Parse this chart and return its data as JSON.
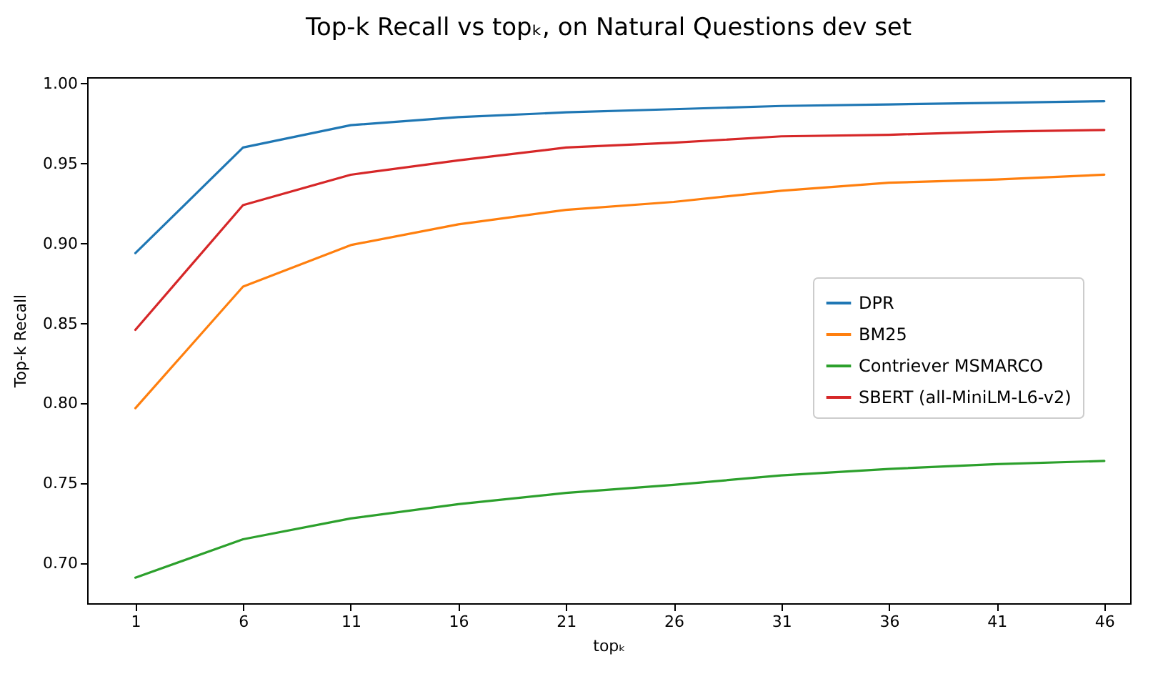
{
  "chart_data": {
    "type": "line",
    "title": "Top-k Recall vs topₖ, on Natural Questions dev set",
    "xlabel": "topₖ",
    "ylabel": "Top-k Recall",
    "x": [
      1,
      6,
      11,
      16,
      21,
      26,
      31,
      36,
      41,
      46
    ],
    "series": [
      {
        "name": "DPR",
        "color": "#1f77b4",
        "values": [
          0.894,
          0.96,
          0.974,
          0.979,
          0.982,
          0.984,
          0.986,
          0.987,
          0.988,
          0.989
        ]
      },
      {
        "name": "BM25",
        "color": "#ff7f0e",
        "values": [
          0.797,
          0.873,
          0.899,
          0.912,
          0.921,
          0.926,
          0.933,
          0.938,
          0.94,
          0.943
        ]
      },
      {
        "name": "Contriever MSMARCO",
        "color": "#2ca02c",
        "values": [
          0.691,
          0.715,
          0.728,
          0.737,
          0.744,
          0.749,
          0.755,
          0.759,
          0.762,
          0.764
        ]
      },
      {
        "name": "SBERT (all-MiniLM-L6-v2)",
        "color": "#d62728",
        "values": [
          0.846,
          0.924,
          0.943,
          0.952,
          0.96,
          0.963,
          0.967,
          0.968,
          0.97,
          0.971
        ]
      }
    ],
    "xlim": [
      -1.24,
      47.2
    ],
    "ylim": [
      0.675,
      1.004
    ],
    "xticks": [
      1,
      6,
      11,
      16,
      21,
      26,
      31,
      36,
      41,
      46
    ],
    "yticks": [
      {
        "value": 0.7,
        "label": "0.70"
      },
      0.75,
      {
        "value": 0.8,
        "label": "0.80"
      },
      0.85,
      {
        "value": 0.9,
        "label": "0.90"
      },
      0.95,
      {
        "value": 1,
        "label": "1.00"
      }
    ],
    "grid": false,
    "legend": "right",
    "marker": "none",
    "line_style": "solid"
  }
}
